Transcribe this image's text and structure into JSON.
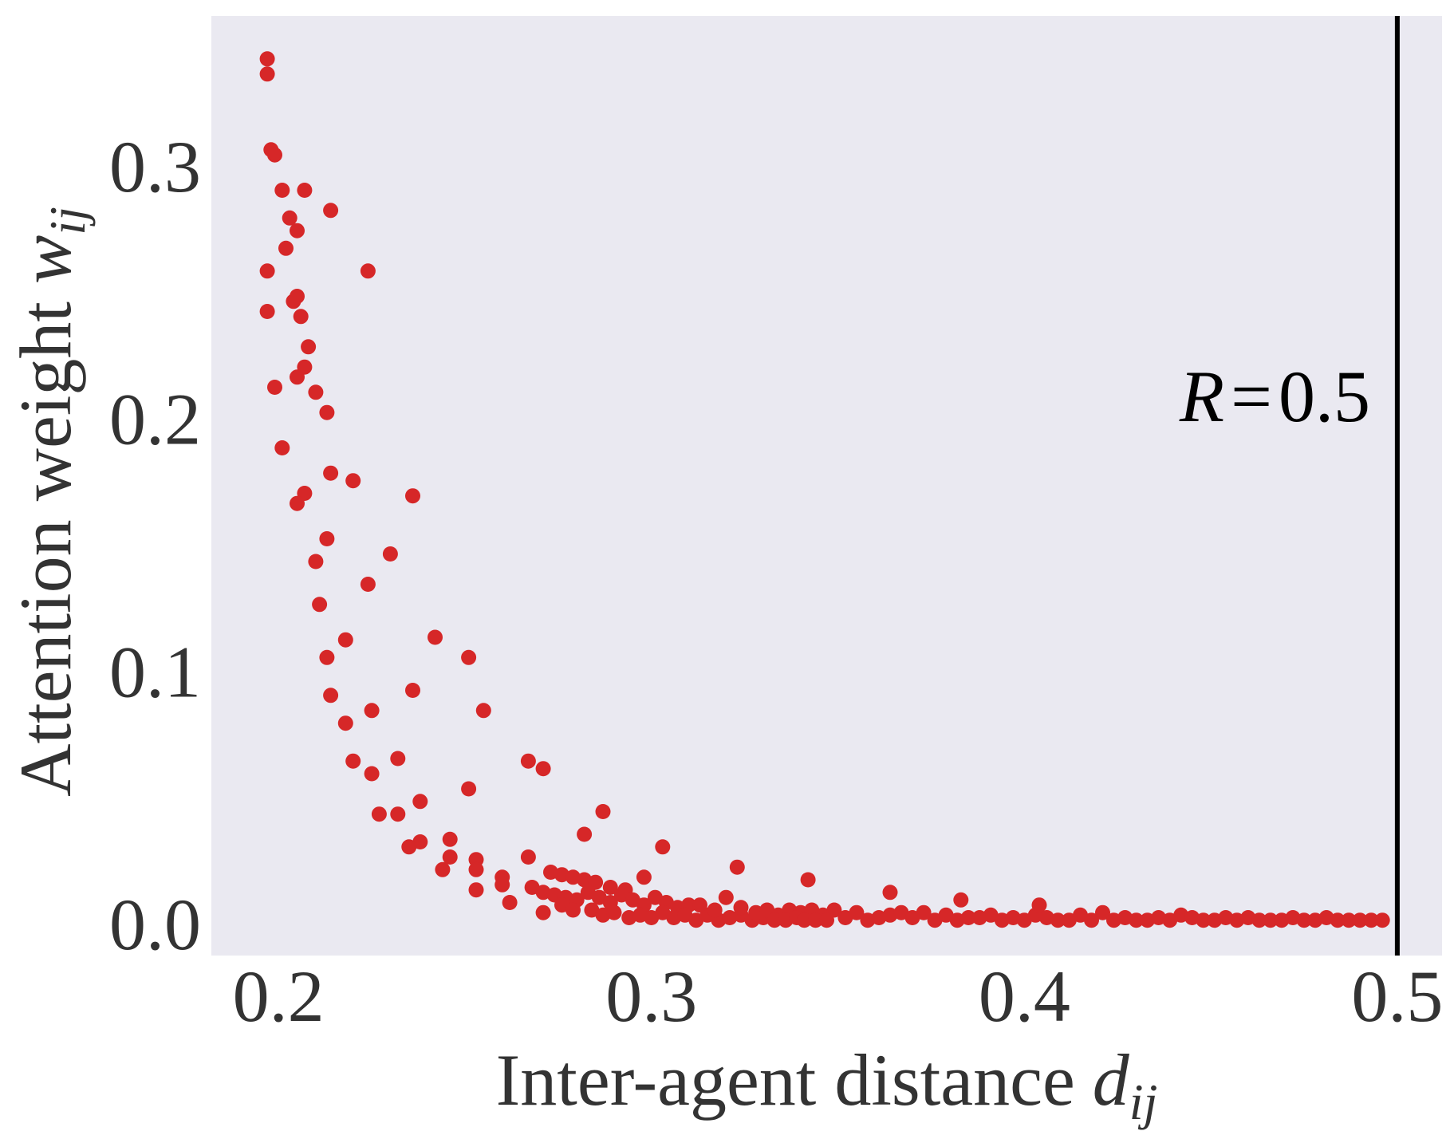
{
  "chart_data": {
    "type": "scatter",
    "xlabel": "Inter-agent distance",
    "xlabel_symbol": "d",
    "xlabel_subscript": "ij",
    "ylabel": "Attention weight",
    "ylabel_symbol": "w",
    "ylabel_subscript": "ij",
    "xlim": [
      0.182,
      0.512
    ],
    "ylim": [
      -0.012,
      0.36
    ],
    "xticks": [
      {
        "value": 0.2,
        "label": "0.2"
      },
      {
        "value": 0.3,
        "label": "0.3"
      },
      {
        "value": 0.4,
        "label": "0.4"
      },
      {
        "value": 0.5,
        "label": "0.5"
      }
    ],
    "yticks": [
      {
        "value": 0.0,
        "label": "0.0"
      },
      {
        "value": 0.1,
        "label": "0.1"
      },
      {
        "value": 0.2,
        "label": "0.2"
      },
      {
        "value": 0.3,
        "label": "0.3"
      }
    ],
    "grid": false,
    "background_color": "#eae9f1",
    "point_color": "#d62728",
    "line_color": "#000000",
    "vline": {
      "x": 0.5
    },
    "annotation": {
      "symbol": "R",
      "equals": "=",
      "value": "0.5"
    },
    "points": [
      [
        0.197,
        0.343
      ],
      [
        0.197,
        0.337
      ],
      [
        0.198,
        0.307
      ],
      [
        0.199,
        0.305
      ],
      [
        0.201,
        0.291
      ],
      [
        0.203,
        0.28
      ],
      [
        0.205,
        0.275
      ],
      [
        0.207,
        0.291
      ],
      [
        0.214,
        0.283
      ],
      [
        0.224,
        0.259
      ],
      [
        0.197,
        0.259
      ],
      [
        0.197,
        0.243
      ],
      [
        0.199,
        0.213
      ],
      [
        0.202,
        0.268
      ],
      [
        0.204,
        0.247
      ],
      [
        0.205,
        0.249
      ],
      [
        0.206,
        0.241
      ],
      [
        0.208,
        0.229
      ],
      [
        0.207,
        0.221
      ],
      [
        0.205,
        0.217
      ],
      [
        0.21,
        0.211
      ],
      [
        0.213,
        0.203
      ],
      [
        0.201,
        0.189
      ],
      [
        0.214,
        0.179
      ],
      [
        0.22,
        0.176
      ],
      [
        0.236,
        0.17
      ],
      [
        0.207,
        0.171
      ],
      [
        0.205,
        0.167
      ],
      [
        0.213,
        0.153
      ],
      [
        0.21,
        0.144
      ],
      [
        0.23,
        0.147
      ],
      [
        0.224,
        0.135
      ],
      [
        0.211,
        0.127
      ],
      [
        0.218,
        0.113
      ],
      [
        0.242,
        0.114
      ],
      [
        0.213,
        0.106
      ],
      [
        0.251,
        0.106
      ],
      [
        0.214,
        0.091
      ],
      [
        0.236,
        0.093
      ],
      [
        0.225,
        0.085
      ],
      [
        0.255,
        0.085
      ],
      [
        0.218,
        0.08
      ],
      [
        0.22,
        0.065
      ],
      [
        0.232,
        0.066
      ],
      [
        0.225,
        0.06
      ],
      [
        0.267,
        0.065
      ],
      [
        0.271,
        0.062
      ],
      [
        0.251,
        0.054
      ],
      [
        0.238,
        0.049
      ],
      [
        0.227,
        0.044
      ],
      [
        0.232,
        0.044
      ],
      [
        0.287,
        0.045
      ],
      [
        0.282,
        0.036
      ],
      [
        0.238,
        0.033
      ],
      [
        0.235,
        0.031
      ],
      [
        0.246,
        0.034
      ],
      [
        0.246,
        0.027
      ],
      [
        0.253,
        0.026
      ],
      [
        0.253,
        0.022
      ],
      [
        0.244,
        0.022
      ],
      [
        0.26,
        0.019
      ],
      [
        0.267,
        0.027
      ],
      [
        0.273,
        0.021
      ],
      [
        0.276,
        0.02
      ],
      [
        0.279,
        0.019
      ],
      [
        0.282,
        0.018
      ],
      [
        0.285,
        0.017
      ],
      [
        0.289,
        0.015
      ],
      [
        0.293,
        0.014
      ],
      [
        0.298,
        0.019
      ],
      [
        0.303,
        0.031
      ],
      [
        0.323,
        0.023
      ],
      [
        0.342,
        0.018
      ],
      [
        0.26,
        0.016
      ],
      [
        0.253,
        0.014
      ],
      [
        0.268,
        0.015
      ],
      [
        0.271,
        0.013
      ],
      [
        0.274,
        0.012
      ],
      [
        0.277,
        0.011
      ],
      [
        0.28,
        0.01
      ],
      [
        0.283,
        0.013
      ],
      [
        0.286,
        0.011
      ],
      [
        0.289,
        0.009
      ],
      [
        0.292,
        0.012
      ],
      [
        0.295,
        0.01
      ],
      [
        0.298,
        0.008
      ],
      [
        0.301,
        0.011
      ],
      [
        0.304,
        0.009
      ],
      [
        0.307,
        0.007
      ],
      [
        0.31,
        0.008
      ],
      [
        0.262,
        0.009
      ],
      [
        0.271,
        0.005
      ],
      [
        0.276,
        0.008
      ],
      [
        0.279,
        0.006
      ],
      [
        0.284,
        0.006
      ],
      [
        0.287,
        0.004
      ],
      [
        0.29,
        0.005
      ],
      [
        0.294,
        0.003
      ],
      [
        0.297,
        0.004
      ],
      [
        0.3,
        0.003
      ],
      [
        0.303,
        0.005
      ],
      [
        0.306,
        0.003
      ],
      [
        0.309,
        0.004
      ],
      [
        0.312,
        0.002
      ],
      [
        0.315,
        0.004
      ],
      [
        0.318,
        0.002
      ],
      [
        0.321,
        0.003
      ],
      [
        0.324,
        0.004
      ],
      [
        0.327,
        0.002
      ],
      [
        0.33,
        0.003
      ],
      [
        0.313,
        0.008
      ],
      [
        0.317,
        0.006
      ],
      [
        0.32,
        0.011
      ],
      [
        0.324,
        0.007
      ],
      [
        0.328,
        0.005
      ],
      [
        0.331,
        0.006
      ],
      [
        0.334,
        0.004
      ],
      [
        0.337,
        0.006
      ],
      [
        0.34,
        0.005
      ],
      [
        0.343,
        0.006
      ],
      [
        0.346,
        0.004
      ],
      [
        0.349,
        0.006
      ],
      [
        0.352,
        0.003
      ],
      [
        0.355,
        0.005
      ],
      [
        0.358,
        0.002
      ],
      [
        0.361,
        0.003
      ],
      [
        0.364,
        0.013
      ],
      [
        0.364,
        0.004
      ],
      [
        0.367,
        0.005
      ],
      [
        0.37,
        0.003
      ],
      [
        0.373,
        0.005
      ],
      [
        0.376,
        0.002
      ],
      [
        0.379,
        0.004
      ],
      [
        0.382,
        0.002
      ],
      [
        0.385,
        0.003
      ],
      [
        0.383,
        0.01
      ],
      [
        0.388,
        0.003
      ],
      [
        0.391,
        0.004
      ],
      [
        0.394,
        0.002
      ],
      [
        0.397,
        0.003
      ],
      [
        0.4,
        0.002
      ],
      [
        0.403,
        0.004
      ],
      [
        0.404,
        0.008
      ],
      [
        0.406,
        0.003
      ],
      [
        0.409,
        0.002
      ],
      [
        0.412,
        0.002
      ],
      [
        0.415,
        0.004
      ],
      [
        0.418,
        0.002
      ],
      [
        0.421,
        0.005
      ],
      [
        0.424,
        0.002
      ],
      [
        0.427,
        0.003
      ],
      [
        0.43,
        0.002
      ],
      [
        0.433,
        0.002
      ],
      [
        0.436,
        0.003
      ],
      [
        0.439,
        0.002
      ],
      [
        0.442,
        0.004
      ],
      [
        0.445,
        0.003
      ],
      [
        0.448,
        0.002
      ],
      [
        0.451,
        0.002
      ],
      [
        0.454,
        0.003
      ],
      [
        0.457,
        0.002
      ],
      [
        0.46,
        0.003
      ],
      [
        0.463,
        0.002
      ],
      [
        0.466,
        0.002
      ],
      [
        0.469,
        0.002
      ],
      [
        0.472,
        0.003
      ],
      [
        0.475,
        0.002
      ],
      [
        0.478,
        0.002
      ],
      [
        0.481,
        0.003
      ],
      [
        0.484,
        0.002
      ],
      [
        0.487,
        0.002
      ],
      [
        0.49,
        0.002
      ],
      [
        0.493,
        0.002
      ],
      [
        0.496,
        0.002
      ],
      [
        0.333,
        0.002
      ],
      [
        0.336,
        0.002
      ],
      [
        0.339,
        0.003
      ],
      [
        0.341,
        0.002
      ],
      [
        0.344,
        0.002
      ],
      [
        0.347,
        0.002
      ]
    ]
  }
}
